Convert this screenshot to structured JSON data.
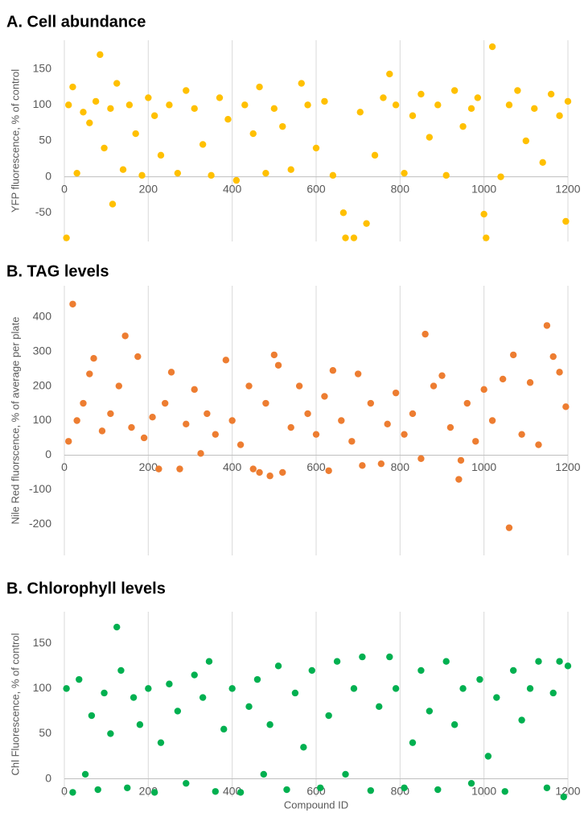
{
  "chart_data": [
    {
      "type": "scatter",
      "title": "A. Cell abundance",
      "y_label": "YFP fluorescence, % of control",
      "color": "#ffc000",
      "xlim": [
        0,
        1200
      ],
      "xticks": [
        0,
        200,
        400,
        600,
        800,
        1000,
        1200
      ],
      "ylim": [
        -90,
        190
      ],
      "yticks": [
        -50,
        0,
        50,
        100,
        150
      ],
      "grid": true,
      "x": [
        5,
        10,
        20,
        30,
        45,
        60,
        75,
        85,
        95,
        110,
        115,
        125,
        140,
        155,
        170,
        185,
        200,
        215,
        230,
        250,
        270,
        290,
        310,
        330,
        350,
        370,
        390,
        410,
        430,
        450,
        465,
        480,
        500,
        520,
        540,
        565,
        580,
        600,
        620,
        640,
        665,
        670,
        690,
        705,
        720,
        740,
        760,
        775,
        790,
        810,
        830,
        850,
        870,
        890,
        910,
        930,
        950,
        970,
        985,
        1000,
        1005,
        1020,
        1040,
        1060,
        1080,
        1100,
        1120,
        1140,
        1160,
        1180,
        1195,
        1200
      ],
      "values": [
        -85,
        100,
        125,
        5,
        90,
        75,
        105,
        170,
        40,
        95,
        -38,
        130,
        10,
        100,
        60,
        2,
        110,
        85,
        30,
        100,
        5,
        120,
        95,
        45,
        2,
        110,
        80,
        -5,
        100,
        60,
        125,
        5,
        95,
        70,
        10,
        130,
        100,
        40,
        105,
        2,
        -50,
        -85,
        -85,
        90,
        -65,
        30,
        110,
        143,
        100,
        5,
        85,
        115,
        55,
        100,
        2,
        120,
        70,
        95,
        110,
        -52,
        -85,
        181,
        0,
        100,
        120,
        50,
        95,
        20,
        115,
        85,
        -62,
        105
      ]
    },
    {
      "type": "scatter",
      "title": "B. TAG levels",
      "y_label": "Nile Red fluorscence, % of average per plate",
      "color": "#ed7d31",
      "xlim": [
        0,
        1200
      ],
      "xticks": [
        0,
        200,
        400,
        600,
        800,
        1000,
        1200
      ],
      "ylim": [
        -290,
        490
      ],
      "yticks": [
        -200,
        -100,
        0,
        100,
        200,
        300,
        400
      ],
      "grid": true,
      "x": [
        10,
        20,
        30,
        45,
        60,
        70,
        90,
        110,
        130,
        145,
        160,
        175,
        190,
        210,
        225,
        240,
        255,
        275,
        290,
        310,
        325,
        340,
        360,
        385,
        400,
        420,
        440,
        450,
        465,
        480,
        490,
        500,
        510,
        520,
        540,
        560,
        580,
        600,
        620,
        630,
        640,
        660,
        685,
        700,
        710,
        730,
        755,
        770,
        790,
        810,
        830,
        850,
        860,
        880,
        900,
        920,
        940,
        945,
        960,
        980,
        1000,
        1020,
        1045,
        1060,
        1070,
        1090,
        1110,
        1130,
        1150,
        1165,
        1180,
        1195
      ],
      "values": [
        40,
        437,
        100,
        150,
        235,
        280,
        70,
        120,
        200,
        345,
        80,
        285,
        50,
        110,
        -40,
        150,
        240,
        -40,
        90,
        190,
        5,
        120,
        60,
        275,
        100,
        30,
        200,
        -40,
        -50,
        150,
        -60,
        290,
        260,
        -50,
        80,
        200,
        120,
        60,
        170,
        -45,
        245,
        100,
        40,
        235,
        -30,
        150,
        -25,
        90,
        180,
        60,
        120,
        -10,
        350,
        200,
        230,
        80,
        -70,
        -15,
        150,
        40,
        190,
        100,
        220,
        -210,
        290,
        60,
        210,
        30,
        375,
        285,
        240,
        140
      ]
    },
    {
      "type": "scatter",
      "title": "B. Chlorophyll levels",
      "y_label": "Chl Fluorescence, % of control",
      "x_label": "Compound ID",
      "color": "#00b050",
      "xlim": [
        0,
        1200
      ],
      "xticks": [
        0,
        200,
        400,
        600,
        800,
        1000,
        1200
      ],
      "ylim": [
        -20,
        185
      ],
      "yticks": [
        0,
        50,
        100,
        150
      ],
      "grid": true,
      "x": [
        5,
        20,
        35,
        50,
        65,
        80,
        95,
        110,
        125,
        135,
        150,
        165,
        180,
        200,
        215,
        230,
        250,
        270,
        290,
        310,
        330,
        345,
        360,
        380,
        400,
        420,
        440,
        460,
        475,
        490,
        510,
        530,
        550,
        570,
        590,
        610,
        630,
        650,
        670,
        690,
        710,
        730,
        750,
        775,
        790,
        810,
        830,
        850,
        870,
        890,
        910,
        930,
        950,
        970,
        990,
        1010,
        1030,
        1050,
        1070,
        1090,
        1110,
        1130,
        1150,
        1165,
        1180,
        1190,
        1200
      ],
      "values": [
        100,
        -15,
        110,
        5,
        70,
        -12,
        95,
        50,
        168,
        120,
        -10,
        90,
        60,
        100,
        -15,
        40,
        105,
        75,
        -5,
        115,
        90,
        130,
        -14,
        55,
        100,
        -15,
        80,
        110,
        5,
        60,
        125,
        -12,
        95,
        35,
        120,
        -10,
        70,
        130,
        5,
        100,
        135,
        -13,
        80,
        135,
        100,
        -10,
        40,
        120,
        75,
        -12,
        130,
        60,
        100,
        -5,
        110,
        25,
        90,
        -14,
        120,
        65,
        100,
        130,
        -10,
        95,
        130,
        -20,
        125
      ]
    }
  ]
}
